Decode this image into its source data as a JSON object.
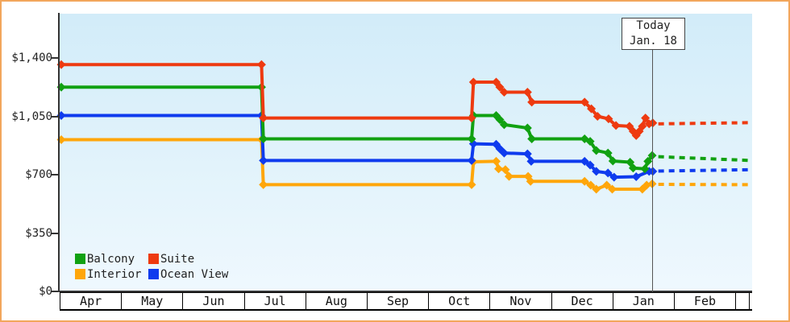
{
  "window": {
    "border_color": "#f2a65c",
    "background": "#ffffff",
    "plot_gradient_top": "#d2ecf9",
    "plot_gradient_bottom": "#eff8fe",
    "axis_color": "#333333"
  },
  "today_box": {
    "line1": "Today",
    "line2": "Jan. 18"
  },
  "chart_data": {
    "type": "line",
    "title": "",
    "xlabel": "",
    "ylabel": "",
    "x_axis": {
      "months": [
        "Apr",
        "May",
        "Jun",
        "Jul",
        "Aug",
        "Sep",
        "Oct",
        "Nov",
        "Dec",
        "Jan",
        "Feb"
      ]
    },
    "y_axis": {
      "tick_labels": [
        "$1,400",
        "$1,050",
        "$700",
        "$350",
        "$0"
      ],
      "tick_values": [
        1400,
        1050,
        700,
        350,
        0
      ],
      "ylim": [
        0,
        1665
      ],
      "grid": false
    },
    "today": {
      "label": "Today Jan. 18",
      "t_months_from_apr": 9.63
    },
    "legend": {
      "position": "bottom-left",
      "items": [
        {
          "label": "Balcony",
          "color": "#11a111"
        },
        {
          "label": "Suite",
          "color": "#ee3a10"
        },
        {
          "label": "Interior",
          "color": "#ffa60a"
        },
        {
          "label": "Ocean View",
          "color": "#0f3bee"
        }
      ]
    },
    "series": [
      {
        "name": "Interior",
        "color": "#ffa60a",
        "points": [
          [
            0,
            910
          ],
          [
            3.26,
            910
          ],
          [
            3.29,
            640
          ],
          [
            6.68,
            640
          ],
          [
            6.71,
            777
          ],
          [
            7.08,
            780
          ],
          [
            7.12,
            735
          ],
          [
            7.23,
            730
          ],
          [
            7.29,
            690
          ],
          [
            7.6,
            690
          ],
          [
            7.64,
            660
          ],
          [
            8.52,
            660
          ],
          [
            8.62,
            637
          ],
          [
            8.71,
            613
          ],
          [
            8.88,
            637
          ],
          [
            8.97,
            613
          ],
          [
            9.46,
            613
          ],
          [
            9.53,
            637
          ],
          [
            9.62,
            645
          ]
        ],
        "forecast": [
          [
            9.72,
            642
          ],
          [
            11.24,
            640
          ]
        ]
      },
      {
        "name": "Ocean View",
        "color": "#0f3bee",
        "points": [
          [
            0,
            1055
          ],
          [
            3.26,
            1055
          ],
          [
            3.29,
            785
          ],
          [
            6.68,
            785
          ],
          [
            6.71,
            885
          ],
          [
            7.08,
            882
          ],
          [
            7.14,
            855
          ],
          [
            7.21,
            830
          ],
          [
            7.59,
            825
          ],
          [
            7.65,
            780
          ],
          [
            8.52,
            780
          ],
          [
            8.61,
            758
          ],
          [
            8.71,
            720
          ],
          [
            8.9,
            710
          ],
          [
            9.0,
            685
          ],
          [
            9.36,
            688
          ],
          [
            9.57,
            720
          ],
          [
            9.63,
            720
          ]
        ],
        "forecast": [
          [
            9.72,
            722
          ],
          [
            11.24,
            730
          ]
        ]
      },
      {
        "name": "Balcony",
        "color": "#11a111",
        "points": [
          [
            0,
            1225
          ],
          [
            3.26,
            1225
          ],
          [
            3.29,
            915
          ],
          [
            6.68,
            915
          ],
          [
            6.71,
            1055
          ],
          [
            7.08,
            1055
          ],
          [
            7.14,
            1030
          ],
          [
            7.21,
            1000
          ],
          [
            7.59,
            980
          ],
          [
            7.66,
            915
          ],
          [
            8.52,
            915
          ],
          [
            8.61,
            900
          ],
          [
            8.71,
            845
          ],
          [
            8.9,
            830
          ],
          [
            8.98,
            782
          ],
          [
            9.26,
            775
          ],
          [
            9.31,
            740
          ],
          [
            9.5,
            735
          ],
          [
            9.55,
            780
          ],
          [
            9.62,
            815
          ]
        ],
        "forecast": [
          [
            9.72,
            808
          ],
          [
            11.24,
            785
          ]
        ]
      },
      {
        "name": "Suite",
        "color": "#ee3a10",
        "points": [
          [
            0,
            1360
          ],
          [
            3.26,
            1360
          ],
          [
            3.29,
            1040
          ],
          [
            6.68,
            1040
          ],
          [
            6.71,
            1255
          ],
          [
            7.08,
            1255
          ],
          [
            7.14,
            1225
          ],
          [
            7.21,
            1195
          ],
          [
            7.59,
            1195
          ],
          [
            7.66,
            1135
          ],
          [
            8.52,
            1135
          ],
          [
            8.63,
            1095
          ],
          [
            8.73,
            1050
          ],
          [
            8.91,
            1035
          ],
          [
            9.03,
            995
          ],
          [
            9.25,
            990
          ],
          [
            9.31,
            960
          ],
          [
            9.36,
            935
          ],
          [
            9.41,
            960
          ],
          [
            9.46,
            990
          ],
          [
            9.51,
            1040
          ],
          [
            9.57,
            1005
          ],
          [
            9.63,
            1010
          ]
        ],
        "forecast": [
          [
            9.72,
            1005
          ],
          [
            11.24,
            1012
          ]
        ]
      }
    ]
  }
}
